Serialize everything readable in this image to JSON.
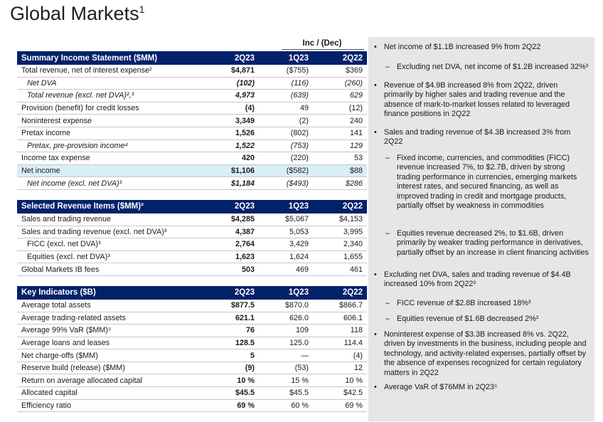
{
  "title": "Global Markets",
  "title_sup": "1",
  "inc_header": "Inc / (Dec)",
  "summary": {
    "header": [
      "Summary Income Statement ($MM)",
      "2Q23",
      "1Q23",
      "2Q22"
    ],
    "rows": [
      {
        "label": "Total revenue, net of interest expense²",
        "v": [
          "$4,871",
          "($755)",
          "$369"
        ],
        "style": ""
      },
      {
        "label": "Net DVA",
        "v": [
          "(102)",
          "(116)",
          "(260)"
        ],
        "style": "italic ind2"
      },
      {
        "label": "Total revenue (excl. net DVA)²,³",
        "v": [
          "4,973",
          "(639)",
          "629"
        ],
        "style": "italic ind2"
      },
      {
        "label": "Provision (benefit) for credit losses",
        "v": [
          "(4)",
          "49",
          "(12)"
        ],
        "style": ""
      },
      {
        "label": "Noninterest expense",
        "v": [
          "3,349",
          "(2)",
          "240"
        ],
        "style": ""
      },
      {
        "label": "Pretax income",
        "v": [
          "1,526",
          "(802)",
          "141"
        ],
        "style": ""
      },
      {
        "label": "Pretax, pre-provision income⁴",
        "v": [
          "1,522",
          "(753)",
          "129"
        ],
        "style": "italic ind2"
      },
      {
        "label": "Income tax expense",
        "v": [
          "420",
          "(220)",
          "53"
        ],
        "style": ""
      },
      {
        "label": "Net income",
        "v": [
          "$1,106",
          "($582)",
          "$88"
        ],
        "style": "hl"
      },
      {
        "label": "Net income (excl. net DVA)³",
        "v": [
          "$1,184",
          "($493)",
          "$286"
        ],
        "style": "italic ind2"
      }
    ]
  },
  "revenue": {
    "header": [
      "Selected Revenue Items ($MM)²",
      "2Q23",
      "1Q23",
      "2Q22"
    ],
    "rows": [
      {
        "label": "Sales and trading revenue",
        "v": [
          "$4,285",
          "$5,067",
          "$4,153"
        ],
        "style": ""
      },
      {
        "label": "Sales and trading revenue (excl. net DVA)³",
        "v": [
          "4,387",
          "5,053",
          "3,995"
        ],
        "style": ""
      },
      {
        "label": "FICC (excl. net DVA)³",
        "v": [
          "2,764",
          "3,429",
          "2,340"
        ],
        "style": "ind1"
      },
      {
        "label": "Equities (excl. net DVA)³",
        "v": [
          "1,623",
          "1,624",
          "1,655"
        ],
        "style": "ind1"
      },
      {
        "label": "Global Markets IB fees",
        "v": [
          "503",
          "469",
          "461"
        ],
        "style": ""
      }
    ]
  },
  "indicators": {
    "header": [
      "Key Indicators ($B)",
      "2Q23",
      "1Q23",
      "2Q22"
    ],
    "rows": [
      {
        "label": "Average total assets",
        "v": [
          "$877.5",
          "$870.0",
          "$866.7"
        ],
        "style": ""
      },
      {
        "label": "Average trading-related assets",
        "v": [
          "621.1",
          "626.0",
          "606.1"
        ],
        "style": ""
      },
      {
        "label": "Average 99% VaR ($MM)⁵",
        "v": [
          "76",
          "109",
          "118"
        ],
        "style": ""
      },
      {
        "label": "Average loans and leases",
        "v": [
          "128.5",
          "125.0",
          "114.4"
        ],
        "style": ""
      },
      {
        "label": "Net charge-offs ($MM)",
        "v": [
          "5",
          "—",
          "(4)"
        ],
        "style": ""
      },
      {
        "label": "Reserve build (release) ($MM)",
        "v": [
          "(9)",
          "(53)",
          "12"
        ],
        "style": ""
      },
      {
        "label": "Return on average allocated capital",
        "v": [
          "10 %",
          "15 %",
          "10 %"
        ],
        "style": ""
      },
      {
        "label": "Allocated capital",
        "v": [
          "$45.5",
          "$45.5",
          "$42.5"
        ],
        "style": ""
      },
      {
        "label": "Efficiency ratio",
        "v": [
          "69 %",
          "60 %",
          "69 %"
        ],
        "style": ""
      }
    ]
  },
  "commentary": [
    {
      "kind": "bullet",
      "text": "Net income of $1.1B increased 9% from 2Q22"
    },
    {
      "kind": "dash",
      "text": "Excluding net DVA, net income of $1.2B increased 32%³"
    },
    {
      "kind": "bullet",
      "text": "Revenue of $4.9B increased 8% from 2Q22, driven primarily by higher sales and trading revenue and the absence of mark-to-market losses related to leveraged finance positions in 2Q22"
    },
    {
      "kind": "bullet",
      "text": "Sales and trading revenue of $4.3B increased 3% from 2Q22"
    },
    {
      "kind": "dash",
      "text": "Fixed income, currencies, and commodities (FICC) revenue increased 7%, to $2.7B, driven by strong trading performance in currencies, emerging markets interest rates, and secured financing, as well as improved trading in credit and mortgage products, partially offset by weakness in commodities"
    },
    {
      "kind": "dash",
      "text": "Equities revenue decreased 2%, to $1.6B, driven primarily by weaker trading performance in derivatives, partially offset by an increase in client financing activities"
    },
    {
      "kind": "bullet",
      "text": "Excluding net DVA, sales and trading revenue of $4.4B increased 10% from 2Q22³"
    },
    {
      "kind": "dash",
      "text": "FICC revenue of $2.8B increased 18%³"
    },
    {
      "kind": "dash",
      "text": "Equities revenue of $1.6B decreased 2%³"
    },
    {
      "kind": "bullet",
      "text": "Noninterest expense of $3.3B increased 8% vs. 2Q22, driven by investments in the business, including people and technology, and activity-related expenses, partially offset by the absence of expenses recognized for certain regulatory matters in 2Q22"
    },
    {
      "kind": "bullet",
      "text": "Average VaR of $76MM in 2Q23⁵"
    }
  ],
  "colors": {
    "header_bg": "#012169",
    "highlight_row": "#d9eef8",
    "panel_bg": "#e6e6e6"
  }
}
